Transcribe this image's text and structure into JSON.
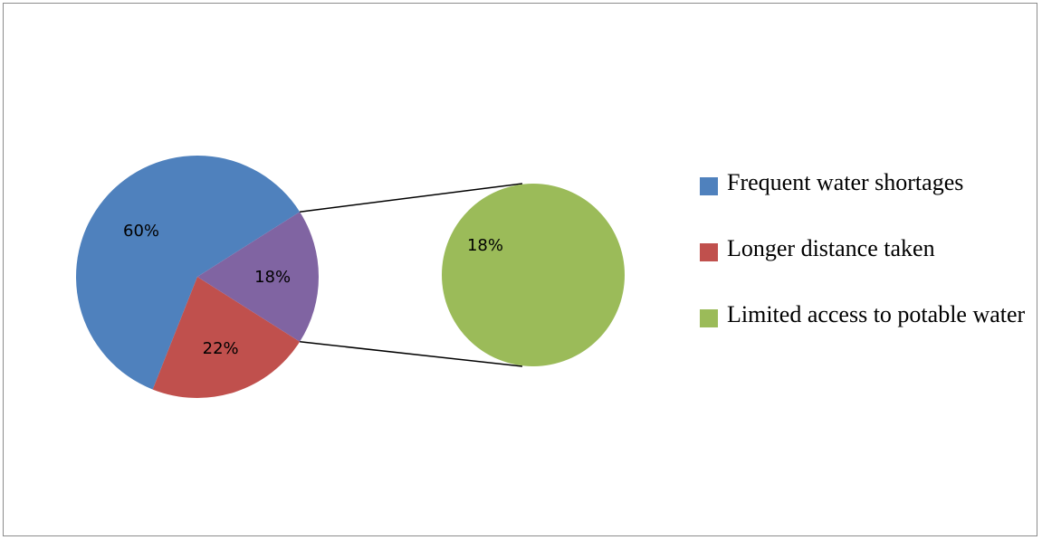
{
  "chart_data": {
    "type": "pie",
    "subtype": "pie-of-pie",
    "title": "",
    "slices": [
      {
        "name": "Frequent water shortages",
        "value": 60,
        "label": "60%",
        "color": "#4F81BD"
      },
      {
        "name": "Longer distance taken",
        "value": 22,
        "label": "22%",
        "color": "#C0504D"
      },
      {
        "name": "Limited access to potable water",
        "value": 18,
        "label": "18%",
        "color": "#8064A2"
      }
    ],
    "secondary_pie": {
      "slices": [
        {
          "name": "Limited access to potable water",
          "value": 18,
          "label": "18%",
          "color": "#9BBB59"
        }
      ]
    },
    "legend": {
      "position": "right",
      "items": [
        {
          "label": "Frequent water shortages",
          "color": "#4F81BD"
        },
        {
          "label": "Longer distance taken",
          "color": "#C0504D"
        },
        {
          "label": "Limited access to potable water",
          "color": "#9BBB59"
        }
      ]
    }
  }
}
